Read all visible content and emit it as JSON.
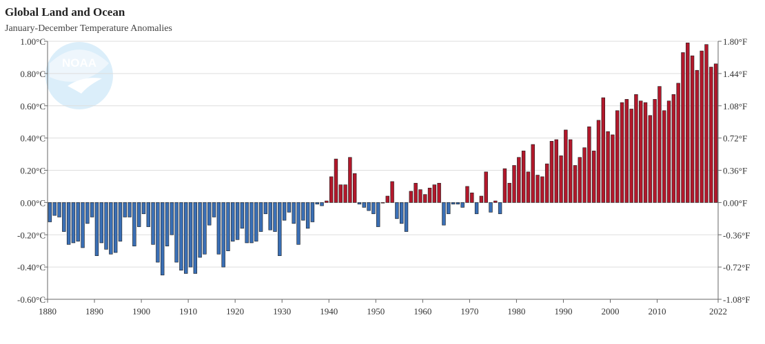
{
  "chart_data": {
    "type": "bar",
    "title": "Global Land and Ocean",
    "subtitle": "January-December Temperature Anomalies",
    "logo_text": "NOAA",
    "x_start": 1880,
    "x_end": 2022,
    "xticks": [
      "1880",
      "1890",
      "1900",
      "1910",
      "1920",
      "1930",
      "1940",
      "1950",
      "1960",
      "1970",
      "1980",
      "1990",
      "2000",
      "2010",
      "2022"
    ],
    "ylim": [
      -0.6,
      1.0
    ],
    "yticks_left": [
      "1.00°C",
      "0.80°C",
      "0.60°C",
      "0.40°C",
      "0.20°C",
      "0.00°C",
      "-0.20°C",
      "-0.40°C",
      "-0.60°C"
    ],
    "yticks_right": [
      "1.80°F",
      "1.44°F",
      "1.08°F",
      "0.72°F",
      "0.36°F",
      "0.00°F",
      "-0.36°F",
      "-0.72°F",
      "-1.08°F"
    ],
    "grid": true,
    "colors": {
      "positive": "#b2182b",
      "negative": "#3a6fb5",
      "bar_stroke": "#1a1a1a",
      "grid": "#dddddd",
      "logo": "#dbeefa"
    },
    "values": [
      -0.12,
      -0.08,
      -0.09,
      -0.18,
      -0.26,
      -0.25,
      -0.24,
      -0.28,
      -0.13,
      -0.09,
      -0.33,
      -0.25,
      -0.29,
      -0.32,
      -0.31,
      -0.24,
      -0.09,
      -0.09,
      -0.27,
      -0.15,
      -0.07,
      -0.15,
      -0.26,
      -0.37,
      -0.45,
      -0.27,
      -0.2,
      -0.37,
      -0.42,
      -0.44,
      -0.4,
      -0.44,
      -0.34,
      -0.32,
      -0.14,
      -0.09,
      -0.32,
      -0.4,
      -0.3,
      -0.24,
      -0.23,
      -0.16,
      -0.25,
      -0.25,
      -0.24,
      -0.18,
      -0.07,
      -0.17,
      -0.18,
      -0.33,
      -0.11,
      -0.06,
      -0.13,
      -0.26,
      -0.11,
      -0.16,
      -0.12,
      -0.01,
      -0.02,
      0.01,
      0.16,
      0.27,
      0.11,
      0.11,
      0.28,
      0.18,
      -0.01,
      -0.03,
      -0.05,
      -0.07,
      -0.15,
      0.0,
      0.04,
      0.13,
      -0.1,
      -0.13,
      -0.18,
      0.07,
      0.12,
      0.08,
      0.05,
      0.09,
      0.11,
      0.12,
      -0.14,
      -0.07,
      -0.01,
      -0.01,
      -0.03,
      0.1,
      0.06,
      -0.07,
      0.04,
      0.19,
      -0.06,
      0.01,
      -0.07,
      0.21,
      0.12,
      0.23,
      0.28,
      0.32,
      0.19,
      0.36,
      0.17,
      0.16,
      0.24,
      0.38,
      0.39,
      0.29,
      0.45,
      0.39,
      0.23,
      0.28,
      0.34,
      0.47,
      0.32,
      0.51,
      0.65,
      0.44,
      0.42,
      0.57,
      0.62,
      0.64,
      0.58,
      0.67,
      0.63,
      0.62,
      0.54,
      0.64,
      0.72,
      0.57,
      0.63,
      0.67,
      0.74,
      0.93,
      0.99,
      0.91,
      0.82,
      0.94,
      0.98,
      0.84,
      0.86
    ]
  }
}
